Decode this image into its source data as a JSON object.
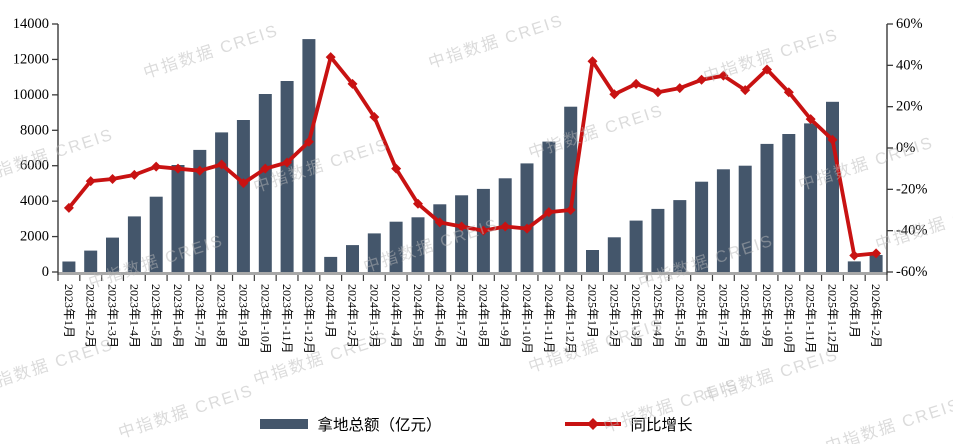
{
  "legend": {
    "bar_label": "拿地总额（亿元）",
    "line_label": "同比增长"
  },
  "watermark_text": "中指数据 CREIS",
  "chart_data": {
    "type": "bar+line combo",
    "title": "",
    "categories": [
      "2023年1月",
      "2023年1-2月",
      "2023年1-3月",
      "2023年1-4月",
      "2023年1-5月",
      "2023年1-6月",
      "2023年1-7月",
      "2023年1-8月",
      "2023年1-9月",
      "2023年1-10月",
      "2023年1-11月",
      "2023年1-12月",
      "2024年1月",
      "2024年1-2月",
      "2024年1-3月",
      "2024年1-4月",
      "2024年1-5月",
      "2024年1-6月",
      "2024年1-7月",
      "2024年1-8月",
      "2024年1-9月",
      "2024年1-10月",
      "2024年1-11月",
      "2024年1-12月",
      "2025年1月",
      "2025年1-2月",
      "2025年1-3月",
      "2025年1-4月",
      "2025年1-5月",
      "2025年1-6月",
      "2025年1-7月",
      "2025年1-8月",
      "2025年1-9月",
      "2025年1-10月",
      "2025年1-11月",
      "2025年1-12月",
      "2026年1月",
      "2026年1-2月"
    ],
    "series": [
      {
        "name": "拿地总额（亿元）",
        "type": "bar",
        "axis": "left",
        "values": [
          590,
          1210,
          1940,
          3140,
          4250,
          6040,
          6890,
          7880,
          8580,
          10050,
          10780,
          13150,
          850,
          1520,
          2180,
          2840,
          3090,
          3820,
          4330,
          4690,
          5290,
          6130,
          7360,
          9330,
          1240,
          1960,
          2900,
          3560,
          4060,
          5100,
          5800,
          6000,
          7230,
          7790,
          8390,
          9610,
          600,
          960
        ]
      },
      {
        "name": "同比增长",
        "type": "line",
        "axis": "right",
        "unit": "%",
        "values": [
          -29,
          -16,
          -15,
          -13,
          -9,
          -10,
          -11,
          -8,
          -17,
          -10,
          -7,
          3,
          44,
          31,
          15,
          -10,
          -27,
          -36,
          -38,
          -40,
          -38,
          -39,
          -31,
          -30,
          42,
          26,
          31,
          27,
          29,
          33,
          35,
          28,
          38,
          27,
          14,
          4,
          -52,
          -51
        ]
      }
    ],
    "left_axis": {
      "min": 0,
      "max": 14000,
      "ticks": [
        14000,
        12000,
        10000,
        8000,
        6000,
        4000,
        2000,
        0
      ]
    },
    "right_axis": {
      "min": -60,
      "max": 60,
      "ticks": [
        "60%",
        "40%",
        "20%",
        "0%",
        "-20%",
        "-40%",
        "-60%"
      ],
      "tick_values": [
        60,
        40,
        20,
        0,
        -20,
        -40,
        -60
      ]
    },
    "grid": false,
    "legend_position": "bottom",
    "colors": {
      "bar": "#44566B",
      "line": "#C81212",
      "axis": "#3A3A3A",
      "baseline": "#A8A8A8"
    }
  }
}
